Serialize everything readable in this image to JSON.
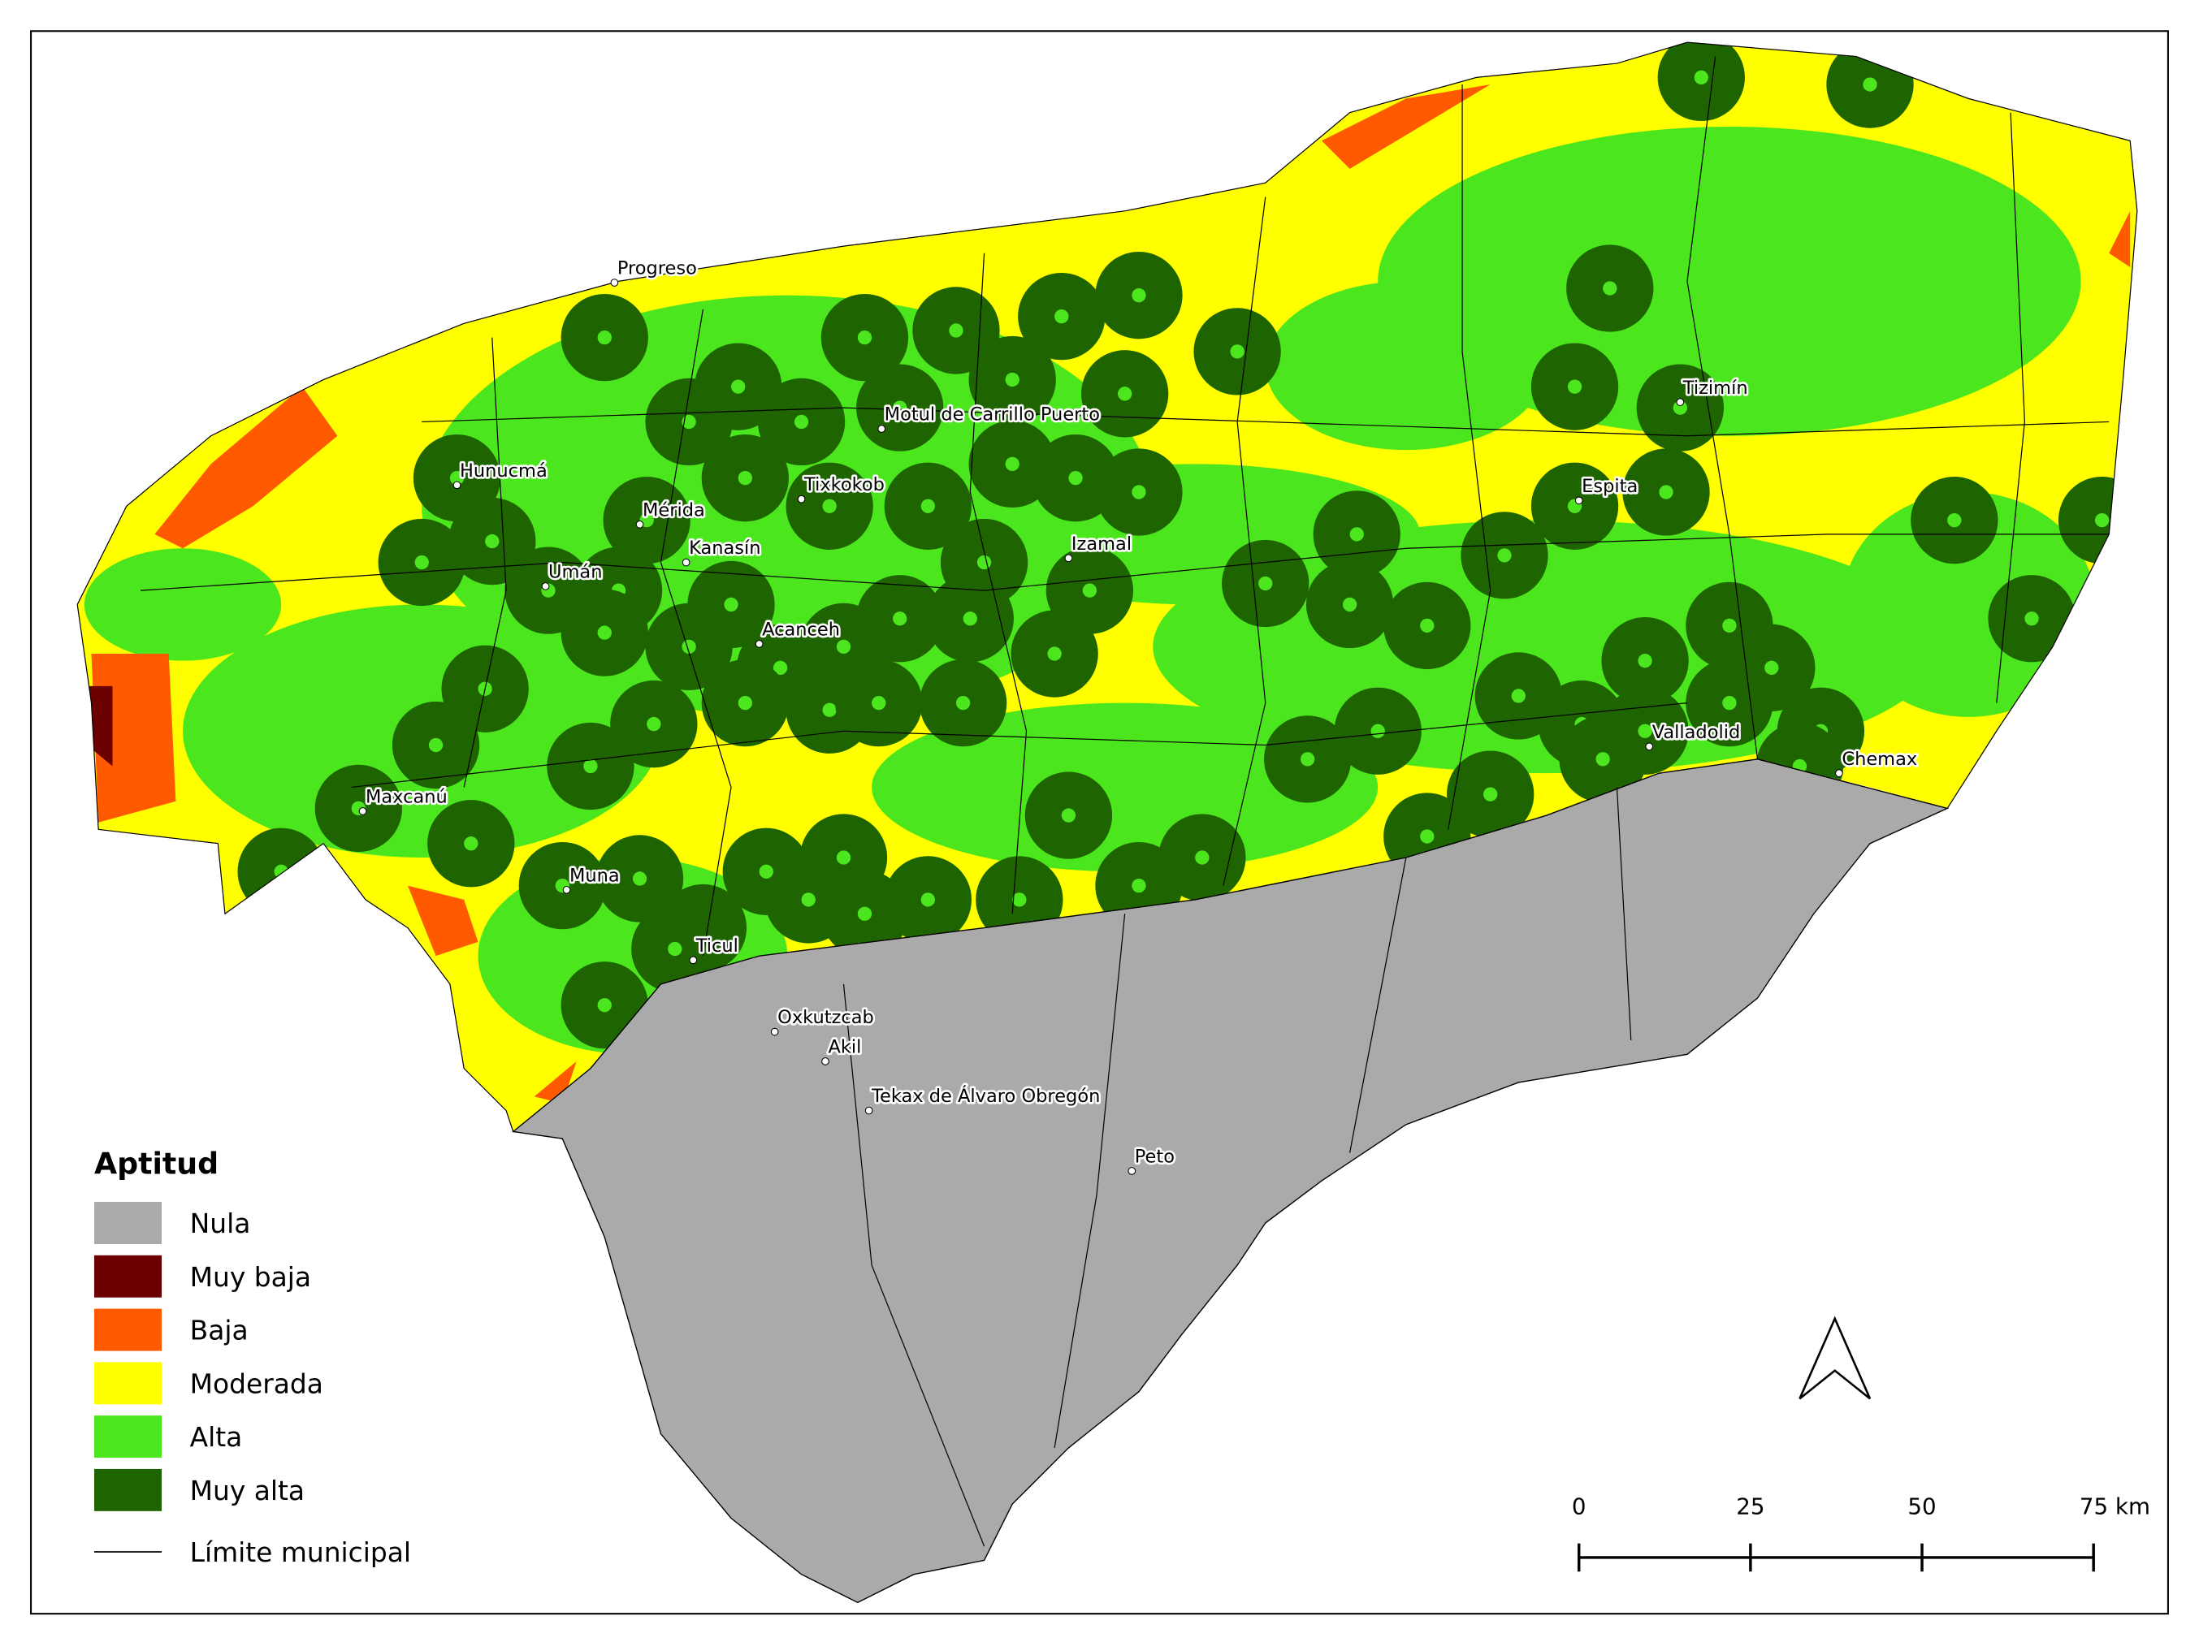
{
  "legend": {
    "title": "Aptitud",
    "items": [
      {
        "label": "Nula",
        "color": "#aaaaaa"
      },
      {
        "label": "Muy baja",
        "color": "#6b0000"
      },
      {
        "label": "Baja",
        "color": "#ff5a00"
      },
      {
        "label": "Moderada",
        "color": "#ffff00"
      },
      {
        "label": "Alta",
        "color": "#4ce61e"
      },
      {
        "label": "Muy alta",
        "color": "#1e6400"
      }
    ],
    "boundary_label": "Límite municipal"
  },
  "cities": [
    "Progreso",
    "Hunucmá",
    "Mérida",
    "Umán",
    "Kanasín",
    "Tixkokob",
    "Motul de Carrillo Puerto",
    "Izamal",
    "Acanceh",
    "Maxcanú",
    "Muna",
    "Ticul",
    "Oxkutzcab",
    "Akil",
    "Tekax de Álvaro Obregón",
    "Peto",
    "Espita",
    "Tizimín",
    "Valladolid",
    "Chemax"
  ],
  "scale_bar": {
    "ticks": [
      0,
      25,
      50,
      {
        "value": 75,
        "label": "75 km"
      }
    ]
  }
}
